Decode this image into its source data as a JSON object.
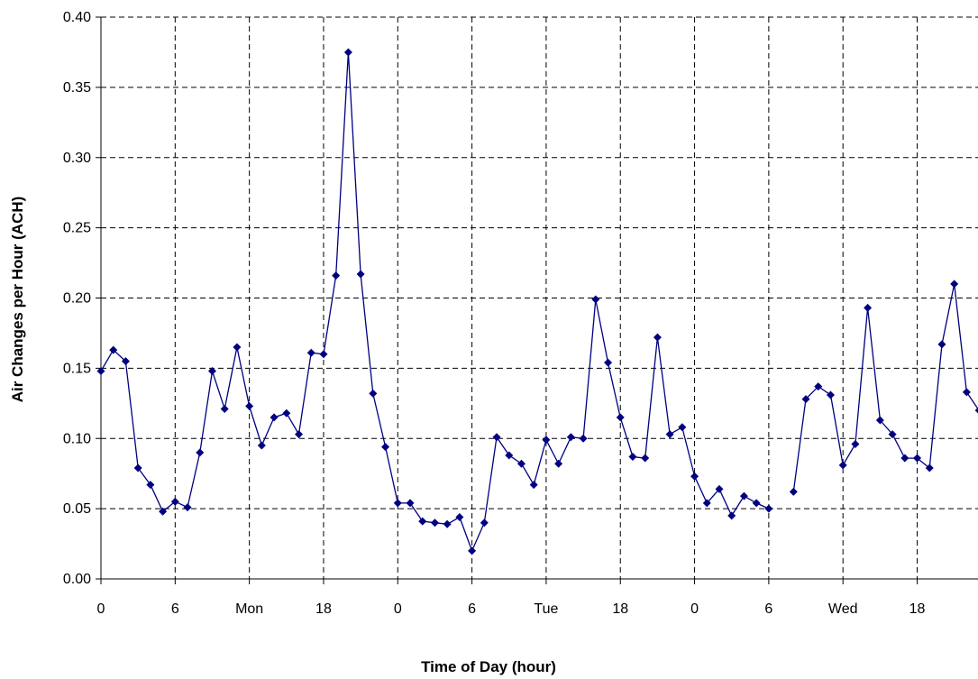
{
  "chart_data": {
    "type": "line",
    "title": "",
    "xlabel": "Time of Day  (hour)",
    "ylabel": "Air Changes per Hour  (ACH)",
    "ylim": [
      0,
      0.4
    ],
    "yticks": [
      "0.00",
      "0.05",
      "0.10",
      "0.15",
      "0.20",
      "0.25",
      "0.30",
      "0.35",
      "0.40"
    ],
    "xlim": [
      0,
      71
    ],
    "xticks": [
      {
        "x": 0,
        "label": "0"
      },
      {
        "x": 6,
        "label": "6"
      },
      {
        "x": 12,
        "label": "Mon"
      },
      {
        "x": 18,
        "label": "18"
      },
      {
        "x": 24,
        "label": "0"
      },
      {
        "x": 30,
        "label": "6"
      },
      {
        "x": 36,
        "label": "Tue"
      },
      {
        "x": 42,
        "label": "18"
      },
      {
        "x": 48,
        "label": "0"
      },
      {
        "x": 54,
        "label": "6"
      },
      {
        "x": 60,
        "label": "Wed"
      },
      {
        "x": 66,
        "label": "18"
      }
    ],
    "grid": true,
    "series": [
      {
        "color": "#000080",
        "marker": "diamond",
        "segments": [
          {
            "x": [
              0,
              1,
              2,
              3,
              4,
              5,
              6,
              7,
              8,
              9,
              10,
              11,
              12,
              13,
              14,
              15,
              16,
              17,
              18,
              19,
              20,
              21,
              22,
              23,
              24,
              25,
              26,
              27,
              28,
              29,
              30,
              31,
              32,
              33,
              34,
              35,
              36,
              37,
              38,
              39,
              40,
              41,
              42,
              43,
              44,
              45,
              46,
              47,
              48,
              49,
              50,
              51,
              52,
              53,
              54
            ],
            "y": [
              0.148,
              0.163,
              0.155,
              0.079,
              0.067,
              0.048,
              0.055,
              0.051,
              0.09,
              0.148,
              0.121,
              0.165,
              0.123,
              0.095,
              0.115,
              0.118,
              0.103,
              0.161,
              0.16,
              0.216,
              0.375,
              0.217,
              0.132,
              0.094,
              0.054,
              0.054,
              0.041,
              0.04,
              0.039,
              0.044,
              0.02,
              0.04,
              0.101,
              0.088,
              0.082,
              0.067,
              0.099,
              0.082,
              0.101,
              0.1,
              0.199,
              0.154,
              0.115,
              0.087,
              0.086,
              0.172,
              0.103,
              0.108,
              0.073,
              0.054,
              0.064,
              0.045,
              0.059,
              0.054,
              0.05
            ]
          },
          {
            "x": [
              56,
              57,
              58,
              59,
              60,
              61,
              62,
              63,
              64,
              65,
              66,
              67,
              68,
              69,
              70,
              71
            ],
            "y": [
              0.062,
              0.128,
              0.137,
              0.131,
              0.081,
              0.096,
              0.193,
              0.113,
              0.103,
              0.086,
              0.086,
              0.079,
              0.167,
              0.21,
              0.133,
              0.12
            ]
          }
        ]
      }
    ]
  }
}
